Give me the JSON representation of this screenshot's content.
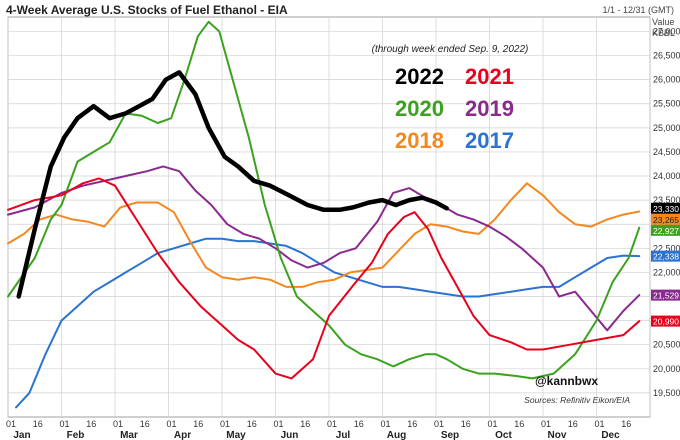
{
  "chart_data": {
    "type": "line",
    "title": "4-Week Average U.S. Stocks of Fuel Ethanol - EIA",
    "date_range": "1/1 - 12/31 (GMT)",
    "value_label_1": "Value",
    "value_label_2": "KBBL",
    "subtitle": "(through week ended Sep. 9, 2022)",
    "handle": "@kannbwx",
    "source": "Sources: Refinitiv Eikon/EIA",
    "ylim": [
      19000,
      27300
    ],
    "y_ticks": [
      19500,
      20000,
      20500,
      21000,
      21500,
      22000,
      22500,
      23000,
      23500,
      24000,
      24500,
      25000,
      25500,
      26000,
      26500,
      27000
    ],
    "y_tick_labels": [
      "19,500",
      "20,000",
      "20,500",
      "21,000",
      "21,500",
      "22,000",
      "22,500",
      "23,000",
      "23,500",
      "24,000",
      "24,500",
      "25,000",
      "25,500",
      "26,000",
      "26,500",
      "27,000"
    ],
    "x_ticks_day": [
      "01",
      "16",
      "01",
      "16",
      "01",
      "16",
      "01",
      "16",
      "01",
      "16",
      "01",
      "16",
      "01",
      "16",
      "01",
      "16",
      "01",
      "16",
      "01",
      "16",
      "01",
      "16",
      "01",
      "16"
    ],
    "months": [
      "Jan",
      "Feb",
      "Mar",
      "Apr",
      "May",
      "Jun",
      "Jul",
      "Aug",
      "Sep",
      "Oct",
      "Nov",
      "Dec"
    ],
    "grid": true,
    "legend_order": [
      "2022",
      "2021",
      "2020",
      "2019",
      "2018",
      "2017"
    ],
    "series": [
      {
        "name": "2022",
        "color": "#000000",
        "width": 4.5,
        "end_label": "23,330",
        "x": [
          0.2,
          0.5,
          0.8,
          1.05,
          1.3,
          1.6,
          1.9,
          2.2,
          2.45,
          2.7,
          2.95,
          3.2,
          3.5,
          3.75,
          4.05,
          4.3,
          4.6,
          4.9,
          5.25,
          5.6,
          5.9,
          6.2,
          6.45,
          6.75,
          7.0,
          7.25,
          7.5,
          7.75,
          8.0,
          8.2
        ],
        "y": [
          21500,
          22900,
          24200,
          24800,
          25200,
          25450,
          25200,
          25300,
          25450,
          25600,
          26000,
          26150,
          25700,
          25000,
          24400,
          24200,
          23900,
          23800,
          23600,
          23400,
          23300,
          23300,
          23350,
          23450,
          23500,
          23400,
          23500,
          23550,
          23450,
          23330
        ]
      },
      {
        "name": "2021",
        "color": "#e8001c",
        "width": 2,
        "end_label": "20,990",
        "x": [
          0,
          0.5,
          1.0,
          1.4,
          1.7,
          2.0,
          2.4,
          2.8,
          3.2,
          3.6,
          4.0,
          4.3,
          4.6,
          5.0,
          5.3,
          5.7,
          6.0,
          6.5,
          6.8,
          7.1,
          7.4,
          7.6,
          7.85,
          8.1,
          8.4,
          8.7,
          9.0,
          9.4,
          9.7,
          10.0,
          10.5,
          11.0,
          11.5,
          11.8
        ],
        "y": [
          23300,
          23500,
          23600,
          23850,
          23950,
          23800,
          23100,
          22400,
          21800,
          21300,
          20900,
          20600,
          20400,
          19900,
          19800,
          20200,
          21100,
          21800,
          22200,
          22800,
          23150,
          23250,
          22900,
          22300,
          21700,
          21100,
          20700,
          20550,
          20400,
          20400,
          20500,
          20600,
          20700,
          20990
        ]
      },
      {
        "name": "2020",
        "color": "#3aa21e",
        "width": 2,
        "end_label": "22,927",
        "x": [
          0,
          0.5,
          0.8,
          1.0,
          1.3,
          1.6,
          1.9,
          2.2,
          2.5,
          2.8,
          3.05,
          3.3,
          3.55,
          3.75,
          3.95,
          4.2,
          4.5,
          4.8,
          5.1,
          5.4,
          5.7,
          6.0,
          6.3,
          6.6,
          6.9,
          7.2,
          7.5,
          7.8,
          8.0,
          8.2,
          8.5,
          8.8,
          9.1,
          9.5,
          9.8,
          10.2,
          10.6,
          11.0,
          11.3,
          11.6,
          11.8
        ],
        "y": [
          21500,
          22300,
          23100,
          23400,
          24300,
          24500,
          24700,
          25300,
          25250,
          25100,
          25200,
          26000,
          26900,
          27200,
          27000,
          26000,
          24800,
          23400,
          22300,
          21500,
          21200,
          20900,
          20500,
          20300,
          20200,
          20050,
          20200,
          20300,
          20300,
          20200,
          20000,
          19900,
          19900,
          19850,
          19800,
          19900,
          20300,
          21000,
          21800,
          22300,
          22927
        ]
      },
      {
        "name": "2019",
        "color": "#8a2a8f",
        "width": 2,
        "end_label": "21,529",
        "x": [
          0,
          0.5,
          1.0,
          1.4,
          1.8,
          2.2,
          2.6,
          2.9,
          3.2,
          3.5,
          3.8,
          4.1,
          4.4,
          4.7,
          5.0,
          5.3,
          5.6,
          5.9,
          6.2,
          6.5,
          6.9,
          7.2,
          7.5,
          7.8,
          8.1,
          8.4,
          8.7,
          9.0,
          9.3,
          9.6,
          10.0,
          10.3,
          10.6,
          10.9,
          11.2,
          11.5,
          11.8
        ],
        "y": [
          23200,
          23350,
          23650,
          23800,
          23900,
          24000,
          24100,
          24200,
          24100,
          23700,
          23400,
          23000,
          22800,
          22700,
          22500,
          22250,
          22100,
          22200,
          22400,
          22500,
          23050,
          23650,
          23750,
          23550,
          23400,
          23200,
          23100,
          22950,
          22750,
          22500,
          22100,
          21500,
          21600,
          21200,
          20800,
          21200,
          21529
        ]
      },
      {
        "name": "2018",
        "color": "#f5871f",
        "width": 2,
        "end_label": "23,265",
        "x": [
          0,
          0.3,
          0.6,
          0.9,
          1.2,
          1.5,
          1.8,
          2.1,
          2.4,
          2.8,
          3.1,
          3.4,
          3.7,
          4.0,
          4.3,
          4.6,
          4.9,
          5.2,
          5.5,
          5.8,
          6.1,
          6.4,
          6.7,
          7.0,
          7.3,
          7.6,
          7.9,
          8.2,
          8.5,
          8.8,
          9.1,
          9.4,
          9.7,
          10.0,
          10.3,
          10.6,
          10.9,
          11.2,
          11.5,
          11.8
        ],
        "y": [
          22600,
          22800,
          23100,
          23200,
          23100,
          23050,
          22950,
          23350,
          23450,
          23450,
          23250,
          22650,
          22100,
          21900,
          21850,
          21900,
          21850,
          21700,
          21700,
          21800,
          21850,
          22000,
          22050,
          22100,
          22450,
          22800,
          23000,
          22950,
          22850,
          22800,
          23100,
          23500,
          23850,
          23600,
          23250,
          23000,
          22950,
          23100,
          23200,
          23265
        ]
      },
      {
        "name": "2017",
        "color": "#2a73d0",
        "width": 2,
        "end_label": "22,338",
        "x": [
          0.15,
          0.4,
          0.7,
          1.0,
          1.3,
          1.6,
          1.9,
          2.2,
          2.5,
          2.8,
          3.1,
          3.4,
          3.7,
          4.0,
          4.3,
          4.6,
          4.9,
          5.2,
          5.5,
          5.8,
          6.1,
          6.4,
          6.7,
          7.0,
          7.3,
          7.6,
          7.9,
          8.2,
          8.5,
          8.8,
          9.1,
          9.4,
          9.7,
          10.0,
          10.3,
          10.6,
          10.9,
          11.2,
          11.5,
          11.8
        ],
        "y": [
          19200,
          19500,
          20300,
          21000,
          21300,
          21600,
          21800,
          22000,
          22200,
          22400,
          22500,
          22600,
          22700,
          22700,
          22650,
          22650,
          22600,
          22550,
          22400,
          22200,
          22000,
          21900,
          21800,
          21700,
          21700,
          21650,
          21600,
          21550,
          21500,
          21500,
          21550,
          21600,
          21650,
          21700,
          21700,
          21900,
          22100,
          22300,
          22350,
          22338
        ]
      }
    ]
  }
}
